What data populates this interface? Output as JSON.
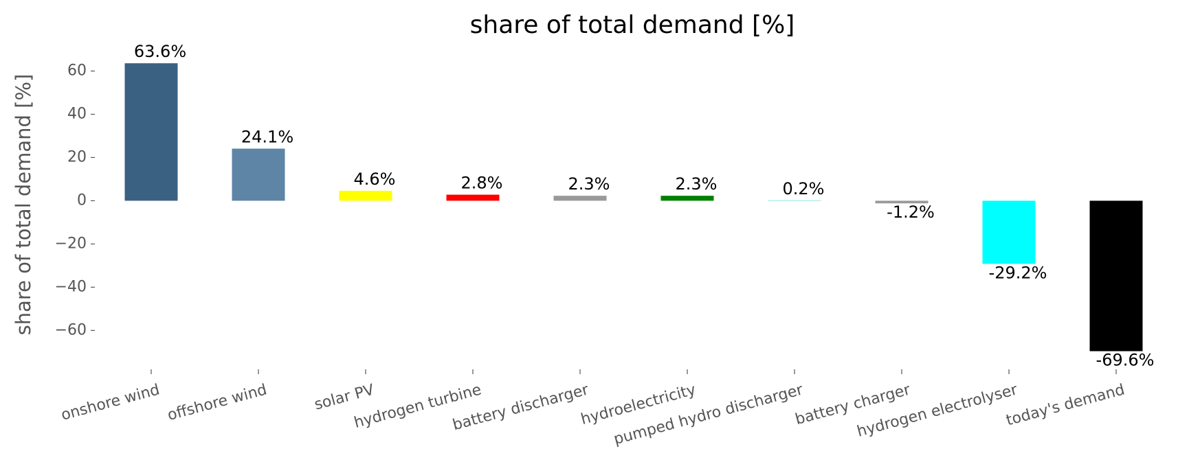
{
  "chart_data": {
    "type": "bar",
    "title": "share of total demand [%]",
    "ylabel": "share of total demand [%]",
    "categories": [
      "onshore wind",
      "offshore wind",
      "solar PV",
      "hydrogen turbine",
      "battery discharger",
      "hydroelectricity",
      "pumped hydro discharger",
      "battery charger",
      "hydrogen electrolyser",
      "today's demand"
    ],
    "values": [
      63.6,
      24.1,
      4.6,
      2.8,
      2.3,
      2.3,
      0.2,
      -1.2,
      -29.2,
      -69.6
    ],
    "value_labels": [
      "63.6%",
      "24.1%",
      "4.6%",
      "2.8%",
      "2.3%",
      "2.3%",
      "0.2%",
      "-1.2%",
      "-29.2%",
      "-69.6%"
    ],
    "colors": [
      "#3b6182",
      "#5e84a6",
      "#ffff00",
      "#ff0000",
      "#999999",
      "#008000",
      "#51dbcc",
      "#999999",
      "#00ffff",
      "#000000"
    ],
    "ylim": [
      -78,
      70
    ],
    "yticks": [
      {
        "value": -60,
        "label": "−60"
      },
      {
        "value": -40,
        "label": "−40"
      },
      {
        "value": -20,
        "label": "−20"
      },
      0,
      20,
      40,
      60
    ],
    "grid": false
  }
}
